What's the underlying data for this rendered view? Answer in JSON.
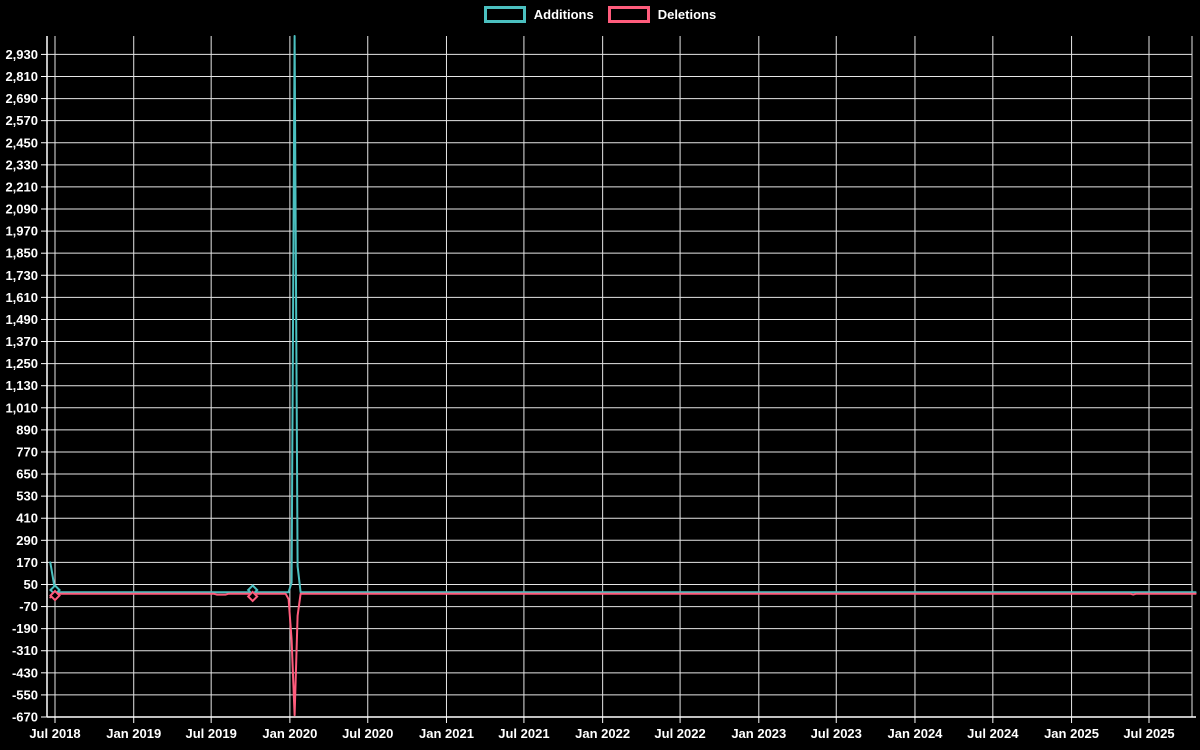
{
  "legend": {
    "items": [
      {
        "label": "Additions",
        "color": "#4bc0c0"
      },
      {
        "label": "Deletions",
        "color": "#ff5c7c"
      }
    ]
  },
  "colors": {
    "background": "#000000",
    "grid": "#e6e6e6",
    "axis": "#ffffff",
    "text": "#ffffff",
    "additions": "#4bc0c0",
    "deletions": "#ff5c7c"
  },
  "chart_data": {
    "type": "line",
    "title": "",
    "xlabel": "",
    "ylabel": "",
    "legend_position": "top",
    "grid": true,
    "point_style": "diamond-outline",
    "ylim": [
      -670,
      3030
    ],
    "y_tick_step": 120,
    "y_tick_labels": [
      "-670",
      "-550",
      "-430",
      "-310",
      "-190",
      "-70",
      "50",
      "170",
      "290",
      "410",
      "530",
      "650",
      "770",
      "890",
      "1,010",
      "1,130",
      "1,250",
      "1,370",
      "1,490",
      "1,610",
      "1,730",
      "1,850",
      "1,970",
      "2,090",
      "2,210",
      "2,330",
      "2,450",
      "2,570",
      "2,690",
      "2,810",
      "2,930"
    ],
    "x_ticks": [
      {
        "label": "Jul 2018",
        "date": "2018-07-01"
      },
      {
        "label": "Jan 2019",
        "date": "2019-01-01"
      },
      {
        "label": "Jul 2019",
        "date": "2019-07-01"
      },
      {
        "label": "Jan 2020",
        "date": "2020-01-01"
      },
      {
        "label": "Jul 2020",
        "date": "2020-07-01"
      },
      {
        "label": "Jan 2021",
        "date": "2021-01-01"
      },
      {
        "label": "Jul 2021",
        "date": "2021-07-01"
      },
      {
        "label": "Jan 2022",
        "date": "2022-01-01"
      },
      {
        "label": "Jul 2022",
        "date": "2022-07-01"
      },
      {
        "label": "Jan 2023",
        "date": "2023-01-01"
      },
      {
        "label": "Jul 2023",
        "date": "2023-07-01"
      },
      {
        "label": "Jan 2024",
        "date": "2024-01-01"
      },
      {
        "label": "Jul 2024",
        "date": "2024-07-01"
      },
      {
        "label": "Jan 2025",
        "date": "2025-01-01"
      },
      {
        "label": "Jul 2025",
        "date": "2025-07-01"
      }
    ],
    "series": [
      {
        "name": "Additions",
        "color": "#4bc0c0",
        "points": [
          {
            "date": "2018-06-20",
            "value": 170
          },
          {
            "date": "2018-07-01",
            "value": 20,
            "marker": true
          },
          {
            "date": "2018-07-08",
            "value": 8
          },
          {
            "date": "2019-09-29",
            "value": 8
          },
          {
            "date": "2019-10-06",
            "value": 20,
            "marker": true
          },
          {
            "date": "2019-10-13",
            "value": 8
          },
          {
            "date": "2019-12-29",
            "value": 8
          },
          {
            "date": "2020-01-05",
            "value": 60
          },
          {
            "date": "2020-01-12",
            "value": 3030
          },
          {
            "date": "2020-01-19",
            "value": 150
          },
          {
            "date": "2020-01-26",
            "value": 8
          },
          {
            "date": "2025-10-18",
            "value": 8
          }
        ]
      },
      {
        "name": "Deletions",
        "color": "#ff5c7c",
        "points": [
          {
            "date": "2018-06-20",
            "value": -20
          },
          {
            "date": "2018-07-01",
            "value": -10,
            "marker": true
          },
          {
            "date": "2018-07-08",
            "value": 0
          },
          {
            "date": "2019-07-07",
            "value": 0
          },
          {
            "date": "2019-07-14",
            "value": -5
          },
          {
            "date": "2019-08-04",
            "value": -5
          },
          {
            "date": "2019-08-11",
            "value": 0
          },
          {
            "date": "2019-09-29",
            "value": 0
          },
          {
            "date": "2019-10-06",
            "value": -15,
            "marker": true
          },
          {
            "date": "2019-10-13",
            "value": 0
          },
          {
            "date": "2019-12-22",
            "value": 0
          },
          {
            "date": "2019-12-29",
            "value": -30
          },
          {
            "date": "2020-01-05",
            "value": -250
          },
          {
            "date": "2020-01-12",
            "value": -660
          },
          {
            "date": "2020-01-19",
            "value": -120
          },
          {
            "date": "2020-01-26",
            "value": 0
          },
          {
            "date": "2025-05-18",
            "value": 0
          },
          {
            "date": "2025-05-25",
            "value": -5
          },
          {
            "date": "2025-06-01",
            "value": 0
          },
          {
            "date": "2025-10-18",
            "value": 0
          }
        ]
      }
    ]
  }
}
